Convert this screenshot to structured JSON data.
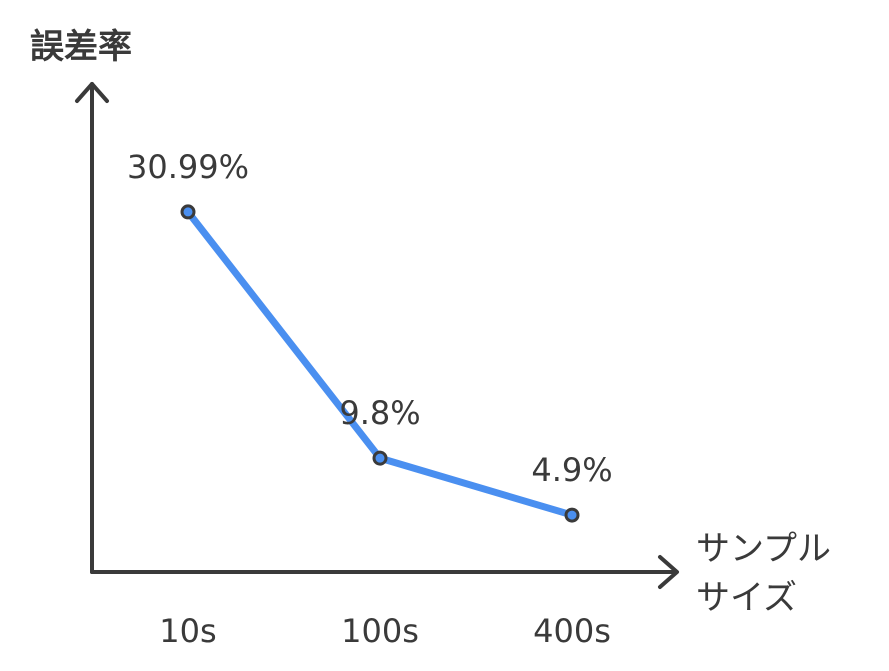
{
  "chart_data": {
    "type": "line",
    "ylabel": "誤差率",
    "xlabel_lines": [
      "サンプル",
      "サイズ"
    ],
    "categories": [
      "10s",
      "100s",
      "400s"
    ],
    "series": [
      {
        "values": [
          30.99,
          9.8,
          4.9
        ],
        "labels": [
          "30.99%",
          "9.8%",
          "4.9%"
        ]
      }
    ],
    "ylim": [
      0,
      42
    ],
    "grid": false,
    "colors": {
      "line": "#4a8ff0",
      "point_fill": "#4a8ff0",
      "point_stroke": "#3a3a3a",
      "axis": "#3a3a3a"
    }
  }
}
